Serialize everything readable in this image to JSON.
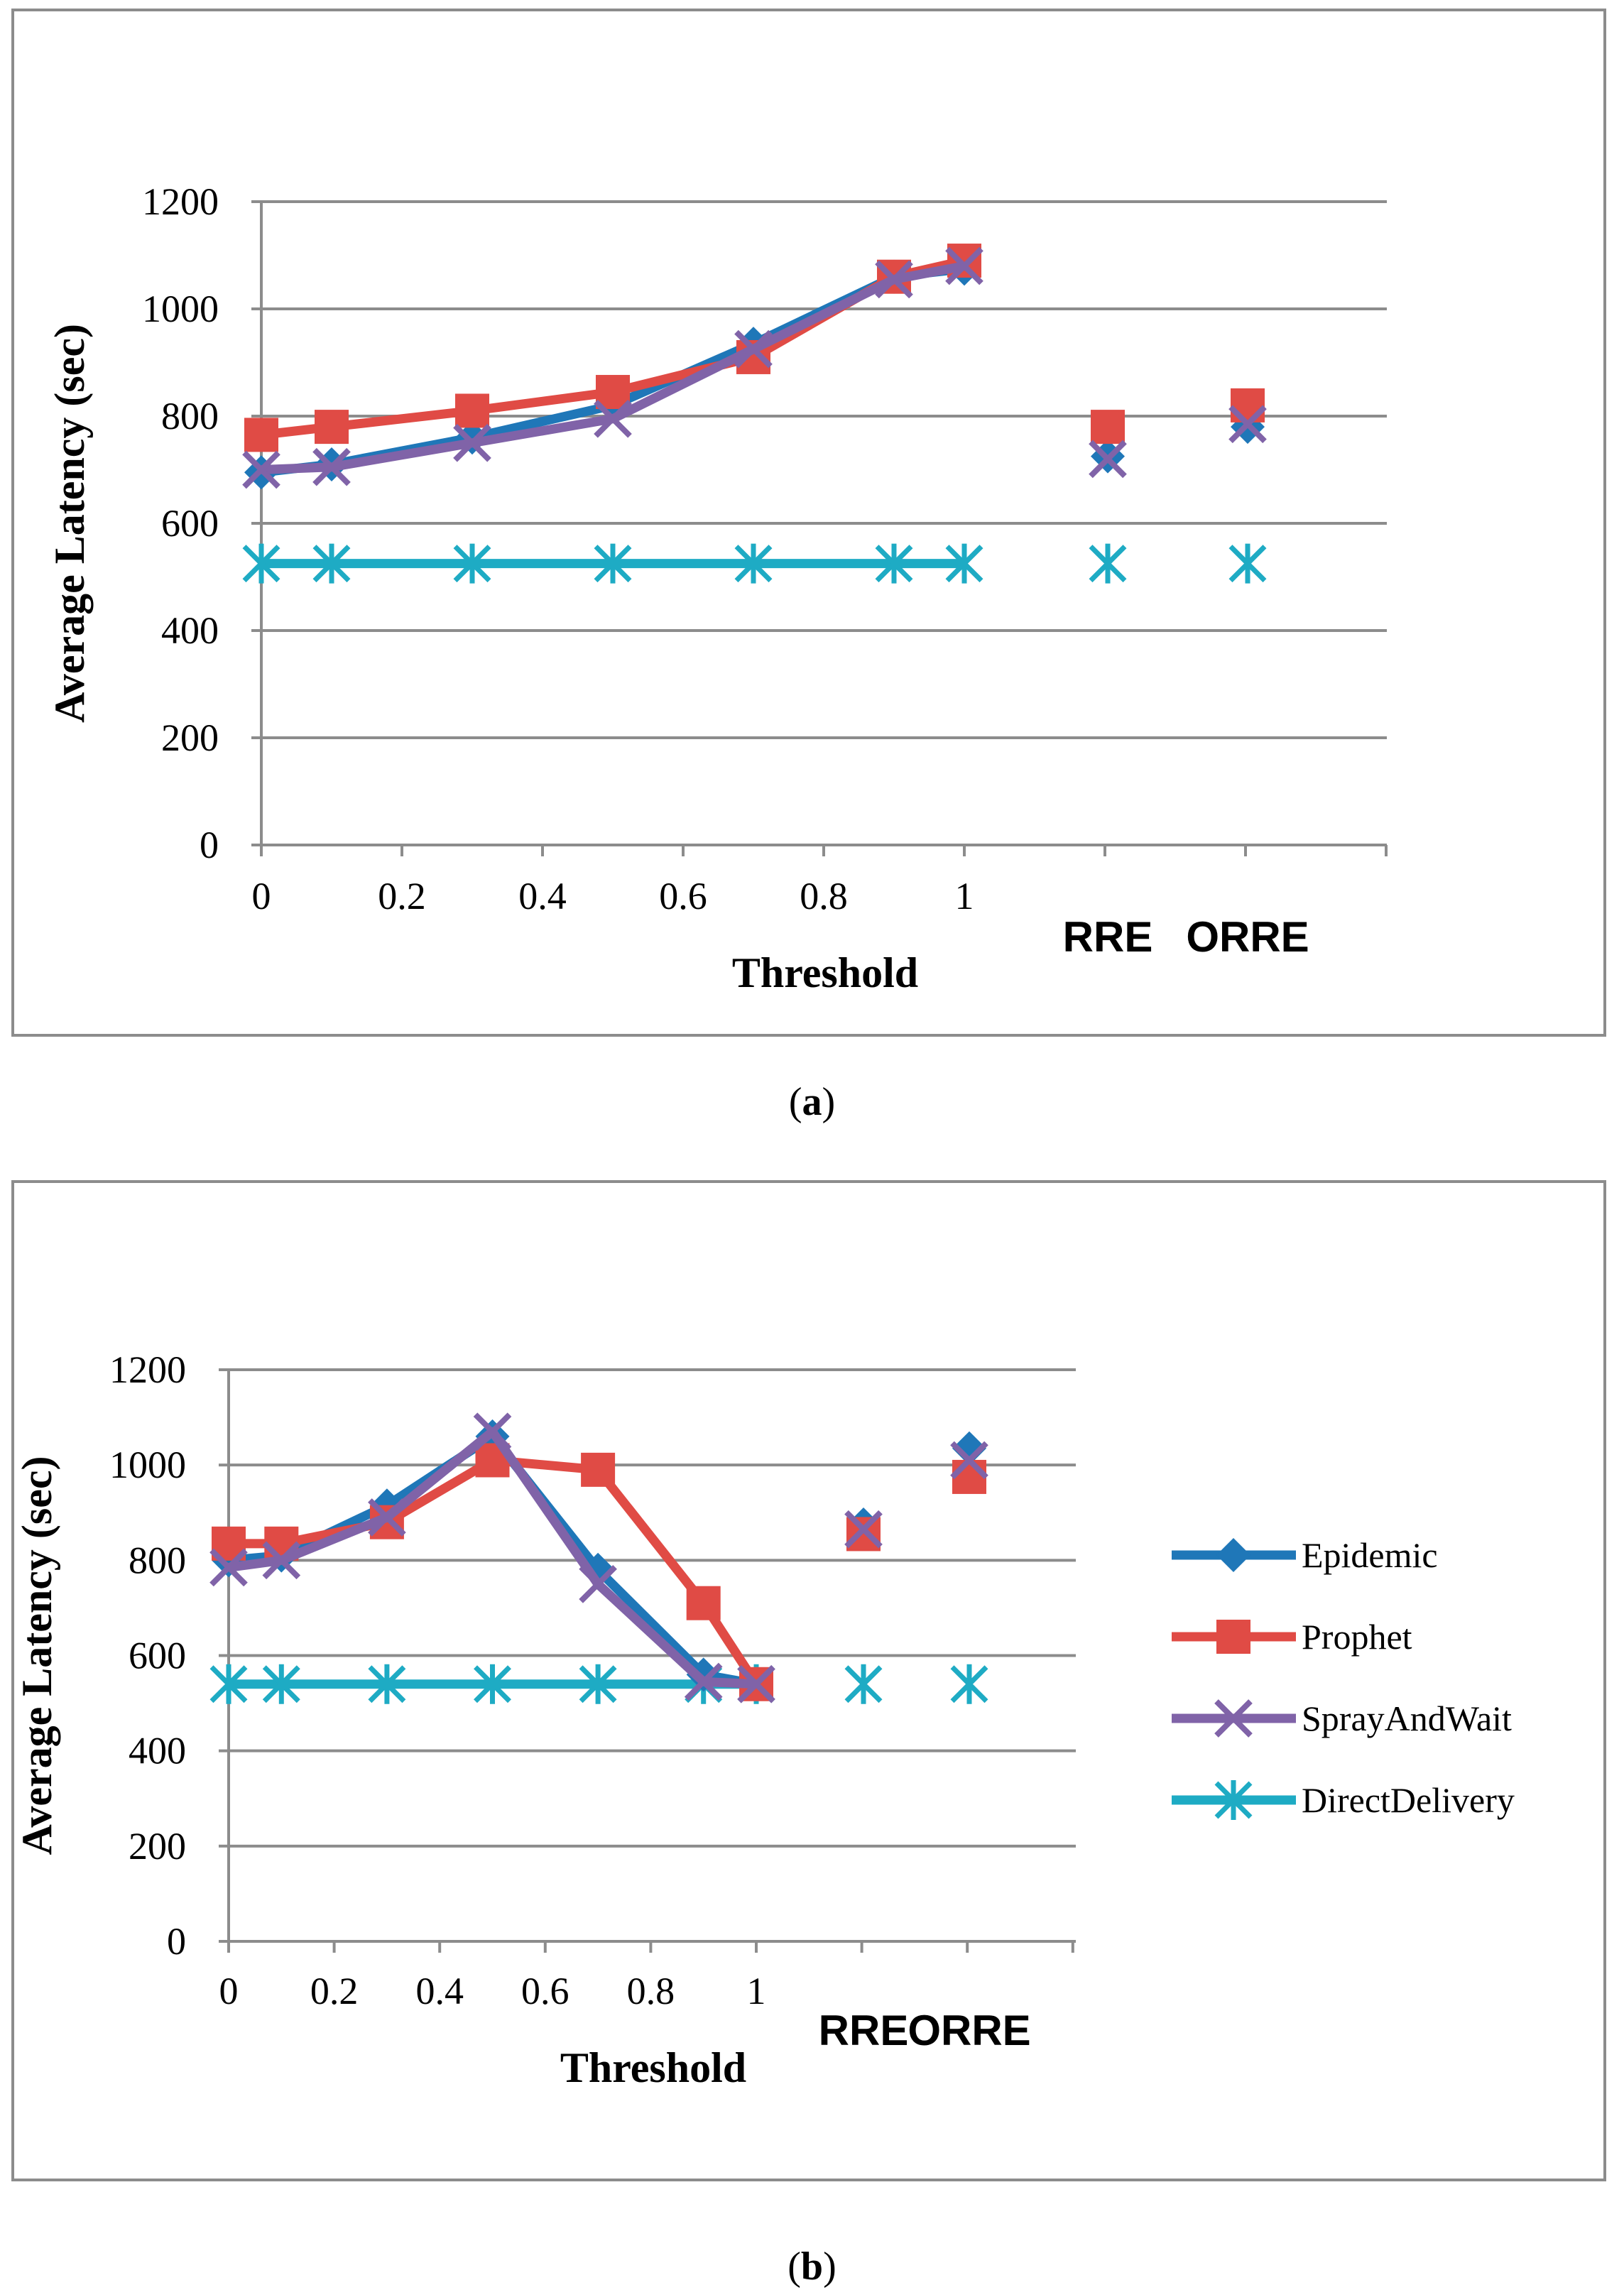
{
  "chart_data": [
    {
      "id": "a",
      "type": "line",
      "caption": "a",
      "xlabel": "Threshold",
      "ylabel": "Average Latency (sec)",
      "ylim": [
        0,
        1200
      ],
      "yticks": [
        "0",
        "200",
        "400",
        "600",
        "800",
        "1000",
        "1200"
      ],
      "x_numeric_ticks": [
        "0",
        "0.2",
        "0.4",
        "0.6",
        "0.8",
        "1"
      ],
      "x_categories": [
        "RRE",
        "ORRE"
      ],
      "grid": true,
      "legend": null,
      "series": [
        {
          "name": "Epidemic",
          "x": [
            0,
            0.1,
            0.3,
            0.5,
            0.7,
            0.9,
            1
          ],
          "values": [
            695,
            710,
            760,
            820,
            935,
            1060,
            1075
          ],
          "cat_values": [
            725,
            780
          ]
        },
        {
          "name": "Prophet",
          "x": [
            0,
            0.1,
            0.3,
            0.5,
            0.7,
            0.9,
            1
          ],
          "values": [
            765,
            780,
            810,
            845,
            910,
            1060,
            1090
          ],
          "cat_values": [
            780,
            820
          ]
        },
        {
          "name": "SprayAndWait",
          "x": [
            0,
            0.1,
            0.3,
            0.5,
            0.7,
            0.9,
            1
          ],
          "values": [
            700,
            705,
            750,
            795,
            925,
            1055,
            1080
          ],
          "cat_values": [
            720,
            785
          ]
        },
        {
          "name": "DirectDelivery",
          "x": [
            0,
            0.1,
            0.3,
            0.5,
            0.7,
            0.9,
            1
          ],
          "values": [
            525,
            525,
            525,
            525,
            525,
            525,
            525
          ],
          "cat_values": [
            525,
            525
          ]
        }
      ]
    },
    {
      "id": "b",
      "type": "line",
      "caption": "b",
      "xlabel": "Threshold",
      "ylabel": "Average Latency (sec)",
      "ylim": [
        0,
        1200
      ],
      "yticks": [
        "0",
        "200",
        "400",
        "600",
        "800",
        "1000",
        "1200"
      ],
      "x_numeric_ticks": [
        "0",
        "0.2",
        "0.4",
        "0.6",
        "0.8",
        "1"
      ],
      "x_categories": [
        "RRE",
        "ORRE"
      ],
      "grid": true,
      "legend": "right",
      "series": [
        {
          "name": "Epidemic",
          "x": [
            0,
            0.1,
            0.3,
            0.5,
            0.7,
            0.9,
            1
          ],
          "values": [
            800,
            810,
            915,
            1060,
            780,
            560,
            540
          ],
          "cat_values": [
            875,
            1035
          ]
        },
        {
          "name": "Prophet",
          "x": [
            0,
            0.1,
            0.3,
            0.5,
            0.7,
            0.9,
            1
          ],
          "values": [
            835,
            835,
            880,
            1010,
            990,
            710,
            540
          ],
          "cat_values": [
            855,
            975
          ]
        },
        {
          "name": "SprayAndWait",
          "x": [
            0,
            0.1,
            0.3,
            0.5,
            0.7,
            0.9,
            1
          ],
          "values": [
            785,
            800,
            890,
            1070,
            750,
            545,
            540
          ],
          "cat_values": [
            865,
            1010
          ]
        },
        {
          "name": "DirectDelivery",
          "x": [
            0,
            0.1,
            0.3,
            0.5,
            0.7,
            0.9,
            1
          ],
          "values": [
            540,
            540,
            540,
            540,
            540,
            540,
            540
          ],
          "cat_values": [
            540,
            540
          ]
        }
      ]
    }
  ],
  "colors": {
    "Epidemic": "#1f77b8",
    "Prophet": "#e04b45",
    "SprayAndWait": "#8063a8",
    "DirectDelivery": "#1eabc4",
    "grid": "#8c8c8c",
    "axis": "#8c8c8c",
    "frame": "#8c8c8c"
  },
  "markers": {
    "Epidemic": "diamond",
    "Prophet": "square",
    "SprayAndWait": "x",
    "DirectDelivery": "asterisk"
  }
}
